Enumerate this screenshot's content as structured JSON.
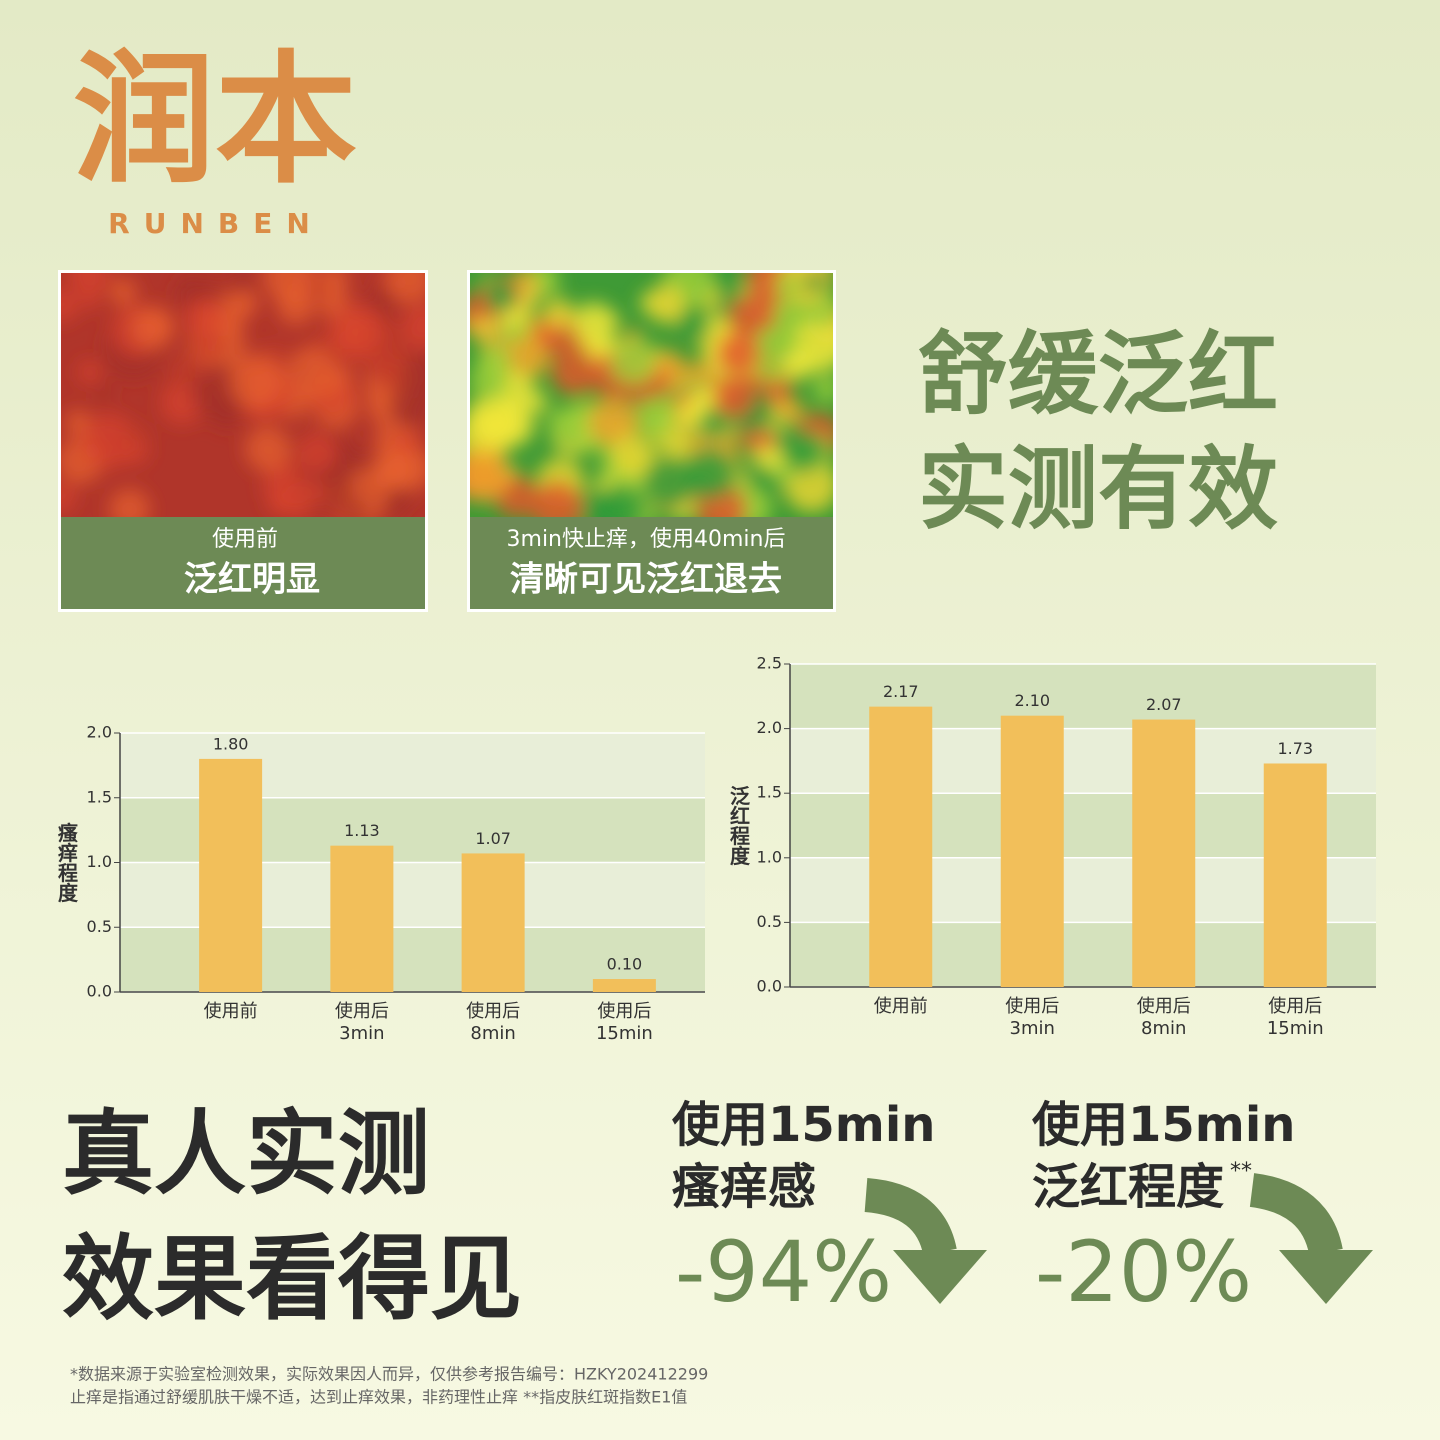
{
  "logo": {
    "cn": "润本",
    "en": "RUNBEN"
  },
  "photos": [
    {
      "caption_small": "使用前",
      "caption_large": "泛红明显"
    },
    {
      "caption_small": "3min快止痒，使用40min后",
      "caption_large": "清晰可见泛红退去"
    }
  ],
  "headline": [
    "舒缓泛红",
    "实测有效"
  ],
  "chart_data": [
    {
      "type": "bar",
      "y_label": "瘙痒程度",
      "categories": [
        "使用前",
        "使用后\n3min",
        "使用后\n8min",
        "使用后\n15min"
      ],
      "values": [
        1.8,
        1.13,
        1.07,
        0.1
      ],
      "value_labels": [
        "1.80",
        "1.13",
        "1.07",
        "0.10"
      ],
      "color": "#f2bf5a",
      "ylim": [
        0,
        2
      ],
      "yticks": [
        {
          "value": 0,
          "label": "0.0"
        },
        {
          "value": 0.5,
          "label": "0.5"
        },
        {
          "value": 1,
          "label": "1.0"
        },
        {
          "value": 1.5,
          "label": "1.5"
        },
        {
          "value": 2,
          "label": "2.0"
        }
      ]
    },
    {
      "type": "bar",
      "y_label": "泛红程度",
      "categories": [
        "使用前",
        "使用后\n3min",
        "使用后\n8min",
        "使用后\n15min"
      ],
      "values": [
        2.17,
        2.1,
        2.07,
        1.73
      ],
      "value_labels": [
        "2.17",
        "2.10",
        "2.07",
        "1.73"
      ],
      "color": "#f2bf5a",
      "ylim": [
        0,
        2.5
      ],
      "yticks": [
        {
          "value": 0,
          "label": "0.0"
        },
        {
          "value": 0.5,
          "label": "0.5"
        },
        {
          "value": 1,
          "label": "1.0"
        },
        {
          "value": 1.5,
          "label": "1.5"
        },
        {
          "value": 2,
          "label": "2.0"
        },
        {
          "value": 2.5,
          "label": "2.5"
        }
      ]
    }
  ],
  "bottom": {
    "title": [
      "真人实测",
      "效果看得见"
    ],
    "stats": [
      {
        "line1": "使用15min",
        "line2": "瘙痒感",
        "mark": "",
        "value": "-94%"
      },
      {
        "line1": "使用15min",
        "line2": "泛红程度",
        "mark": "**",
        "value": "-20%"
      }
    ],
    "footnotes": [
      "*数据来源于实验室检测效果，实际效果因人而异，仅供参考报告编号：HZKY202412299",
      "止痒是指通过舒缓肌肤干燥不适，达到止痒效果，非药理性止痒 **指皮肤红斑指数E1值"
    ]
  }
}
